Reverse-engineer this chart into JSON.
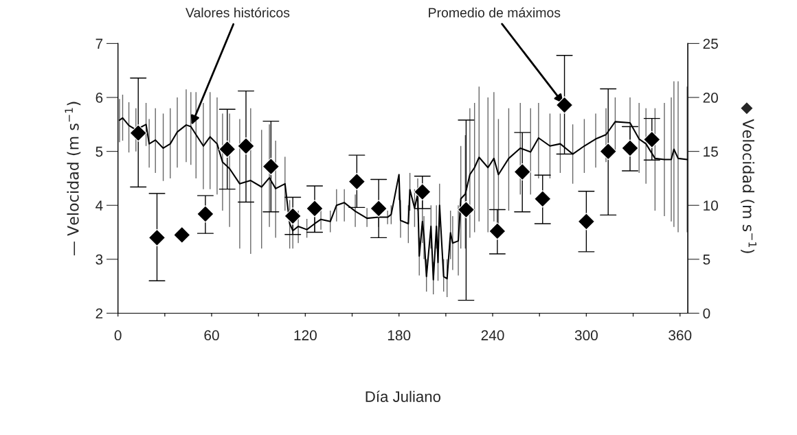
{
  "chart_data": {
    "type": "line",
    "xlabel": "Día Juliano",
    "ylabel": "— Velocidad (m s$^{−1}$)",
    "y2label": "◆ Velocidad (m s$^{−1}$)",
    "xlim": [
      0,
      365
    ],
    "xticks": [
      0,
      {
        "value": 30,
        "label": null
      },
      60,
      {
        "value": 90,
        "label": null
      },
      120,
      {
        "value": 150,
        "label": null
      },
      180,
      {
        "value": 210,
        "label": null
      },
      240,
      {
        "value": 270,
        "label": null
      },
      300,
      {
        "value": 330,
        "label": null
      },
      360
    ],
    "ylim": [
      2,
      7
    ],
    "yticks": [
      2,
      3,
      4,
      5,
      6,
      7
    ],
    "y2lim": [
      0,
      25
    ],
    "y2ticks": [
      0,
      5,
      10,
      15,
      20,
      25
    ],
    "grid": false,
    "annotations": [
      {
        "text": "Valores históricos",
        "x": 46.7,
        "y": 5.46
      },
      {
        "text": "Promedio de máximos",
        "x": 286,
        "y": 5.86
      }
    ],
    "series": [
      {
        "color": "#000000",
        "marker": "none",
        "line_style": "solid",
        "x": [
          1,
          3,
          7,
          11.5,
          18,
          20,
          24,
          29,
          33.5,
          38,
          43.7,
          46.7,
          50,
          54.7,
          59,
          63.5,
          67,
          71.5,
          78,
          85,
          92,
          97,
          101,
          107,
          110,
          112,
          115.5,
          121,
          126,
          130,
          136,
          140,
          145,
          152,
          159.5,
          167,
          172.7,
          175,
          180,
          181,
          186,
          187,
          190,
          192,
          193,
          195,
          196,
          197.6,
          200.5,
          202,
          204,
          205,
          206,
          208.6,
          210.8,
          213,
          214.4,
          218,
          219.6,
          222.5,
          225.4,
          228.4,
          231.3,
          237,
          240.8,
          243.7,
          250.3,
          257.7,
          264.3,
          269.4,
          276.7,
          283.3,
          291.3,
          298.7,
          306,
          312.6,
          318.5,
          328,
          333.8,
          338.2,
          344,
          350,
          354.4,
          356.1,
          358.8,
          364.6
        ],
        "values": [
          5.58,
          5.62,
          5.48,
          5.4,
          5.5,
          5.14,
          5.21,
          5.06,
          5.14,
          5.36,
          5.49,
          5.46,
          5.31,
          5.1,
          5.27,
          5.14,
          4.8,
          4.68,
          4.4,
          4.46,
          4.34,
          4.51,
          4.31,
          4.4,
          3.66,
          3.53,
          3.61,
          3.55,
          3.66,
          3.74,
          3.7,
          4.0,
          4.05,
          3.89,
          3.76,
          3.78,
          3.78,
          3.83,
          4.57,
          3.72,
          3.66,
          4.29,
          3.95,
          4.21,
          3.06,
          3.7,
          3.44,
          2.68,
          3.61,
          2.62,
          3.61,
          2.94,
          4.0,
          2.68,
          2.64,
          3.49,
          3.3,
          3.34,
          4.12,
          4.21,
          4.57,
          4.7,
          4.89,
          4.7,
          4.87,
          4.57,
          4.87,
          5.06,
          4.99,
          5.25,
          5.1,
          5.14,
          4.95,
          5.1,
          5.23,
          5.31,
          5.55,
          5.53,
          5.23,
          5.14,
          4.87,
          4.85,
          4.85,
          5.04,
          4.87,
          4.85
        ],
        "errors": [
          [
            5.17,
            5.97
          ],
          [
            5.2,
            6.05
          ],
          [
            4.98,
            5.91
          ],
          [
            5.0,
            5.8
          ],
          [
            5.1,
            5.9
          ],
          [
            4.7,
            5.6
          ],
          [
            4.6,
            5.8
          ],
          [
            4.45,
            5.7
          ],
          [
            4.5,
            5.8
          ],
          [
            4.7,
            6.0
          ],
          [
            4.8,
            6.15
          ],
          [
            4.75,
            6.1
          ],
          [
            4.5,
            6.1
          ],
          [
            4.3,
            5.9
          ],
          [
            4.3,
            6.1
          ],
          [
            4.2,
            6.0
          ],
          [
            3.9,
            5.7
          ],
          [
            3.6,
            5.7
          ],
          [
            3.2,
            5.6
          ],
          [
            3.1,
            5.8
          ],
          [
            3.2,
            5.4
          ],
          [
            3.6,
            5.5
          ],
          [
            3.4,
            5.2
          ],
          [
            3.9,
            4.9
          ],
          [
            3.2,
            4.1
          ],
          [
            3.2,
            3.9
          ],
          [
            3.3,
            3.9
          ],
          [
            3.4,
            3.75
          ],
          [
            3.5,
            3.85
          ],
          [
            3.55,
            3.95
          ],
          [
            3.5,
            3.9
          ],
          [
            3.7,
            4.3
          ],
          [
            3.7,
            4.3
          ],
          [
            3.6,
            4.2
          ],
          [
            3.6,
            3.95
          ],
          [
            3.6,
            4.1
          ],
          [
            3.65,
            3.9
          ],
          [
            3.65,
            4.0
          ],
          [
            4.1,
            4.5
          ],
          [
            3.4,
            4.1
          ],
          [
            3.3,
            4.0
          ],
          [
            3.9,
            4.6
          ],
          [
            3.6,
            4.3
          ],
          [
            3.9,
            4.5
          ],
          [
            2.7,
            3.4
          ],
          [
            3.3,
            4.1
          ],
          [
            3.0,
            3.8
          ],
          [
            2.4,
            3.0
          ],
          [
            3.2,
            4.0
          ],
          [
            2.35,
            2.95
          ],
          [
            3.2,
            4.0
          ],
          [
            2.6,
            3.3
          ],
          [
            3.6,
            4.4
          ],
          [
            2.4,
            3.0
          ],
          [
            2.3,
            3.0
          ],
          [
            3.0,
            3.9
          ],
          [
            2.8,
            3.8
          ],
          [
            2.7,
            4.0
          ],
          [
            3.2,
            5.1
          ],
          [
            3.2,
            5.3
          ],
          [
            3.4,
            5.8
          ],
          [
            3.5,
            5.9
          ],
          [
            3.7,
            6.2
          ],
          [
            3.5,
            6.0
          ],
          [
            3.7,
            6.1
          ],
          [
            3.6,
            5.6
          ],
          [
            3.9,
            5.8
          ],
          [
            4.2,
            5.9
          ],
          [
            4.2,
            5.8
          ],
          [
            4.5,
            5.9
          ],
          [
            4.5,
            5.7
          ],
          [
            4.6,
            5.7
          ],
          [
            4.4,
            5.5
          ],
          [
            4.6,
            5.6
          ],
          [
            4.7,
            5.7
          ],
          [
            4.8,
            5.8
          ],
          [
            5.0,
            6.0
          ],
          [
            4.9,
            6.0
          ],
          [
            4.6,
            5.9
          ],
          [
            4.4,
            5.8
          ],
          [
            3.9,
            5.8
          ],
          [
            3.8,
            5.9
          ],
          [
            3.7,
            6.0
          ],
          [
            3.6,
            6.3
          ],
          [
            3.5,
            6.3
          ],
          [
            3.5,
            6.2
          ]
        ]
      },
      {
        "type": "scatter",
        "axis": "y2",
        "color": "#000000",
        "marker": "diamond",
        "x": [
          13,
          25,
          41,
          56,
          70,
          82,
          98,
          112,
          126,
          153,
          167,
          195,
          223,
          243,
          259,
          272,
          286,
          300,
          314,
          328,
          342
        ],
        "values": [
          16.7,
          7.0,
          7.25,
          9.2,
          15.2,
          15.5,
          13.6,
          9.0,
          9.7,
          12.2,
          9.7,
          11.25,
          9.6,
          7.6,
          13.1,
          10.6,
          19.3,
          8.5,
          15.0,
          15.3,
          16.1
        ],
        "errors": [
          [
            11.7,
            21.8
          ],
          [
            3.0,
            11.1
          ],
          null,
          [
            7.4,
            10.9
          ],
          [
            11.5,
            18.9
          ],
          [
            10.3,
            20.6
          ],
          [
            9.4,
            17.8
          ],
          [
            7.3,
            10.75
          ],
          [
            7.5,
            11.8
          ],
          [
            9.8,
            14.65
          ],
          [
            7.0,
            12.4
          ],
          [
            9.7,
            12.7
          ],
          [
            1.2,
            17.9
          ],
          [
            5.5,
            9.6
          ],
          [
            9.4,
            16.75
          ],
          [
            8.3,
            12.8
          ],
          [
            14.75,
            23.9
          ],
          [
            5.7,
            11.3
          ],
          [
            9.1,
            20.8
          ],
          [
            13.2,
            17.3
          ],
          [
            14.2,
            18.05
          ]
        ]
      }
    ]
  }
}
